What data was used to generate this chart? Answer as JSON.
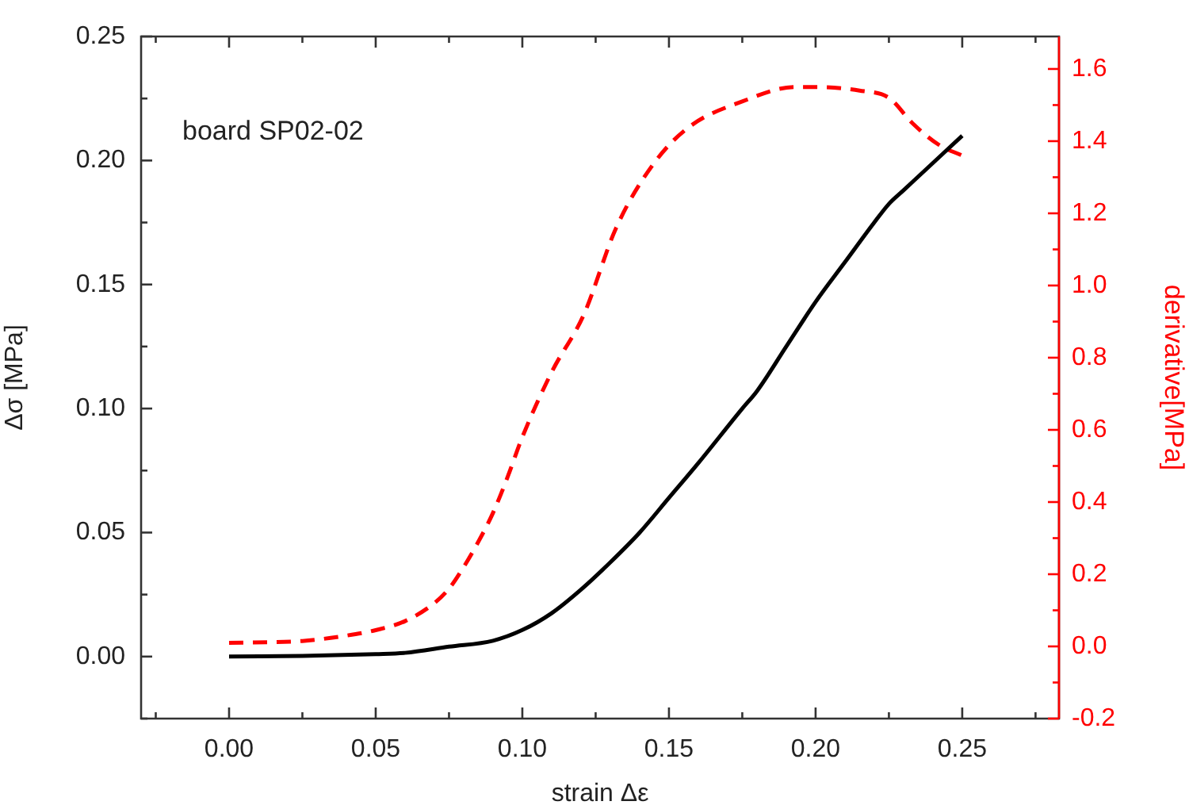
{
  "chart_data": {
    "type": "line",
    "xlabel": "strain Δε",
    "ylabel": "Δσ [MPa]",
    "y2label": "derivative[MPa]",
    "annotations": [
      "board SP02-02"
    ],
    "xlim": [
      -0.03,
      0.283
    ],
    "ylim": [
      -0.025,
      0.25
    ],
    "y2lim": [
      -0.2,
      1.69
    ],
    "xticks": [
      {
        "value": -0.025,
        "label": null
      },
      {
        "value": 0,
        "label": "0.00"
      },
      {
        "value": 0.025,
        "label": null
      },
      {
        "value": 0.05,
        "label": "0.05"
      },
      {
        "value": 0.075,
        "label": null
      },
      {
        "value": 0.1,
        "label": "0.10"
      },
      {
        "value": 0.125,
        "label": null
      },
      {
        "value": 0.15,
        "label": "0.15"
      },
      {
        "value": 0.175,
        "label": null
      },
      {
        "value": 0.2,
        "label": "0.20"
      },
      {
        "value": 0.225,
        "label": null
      },
      {
        "value": 0.25,
        "label": "0.25"
      },
      {
        "value": 0.275,
        "label": null
      }
    ],
    "yticks": [
      {
        "value": -0.025,
        "label": null
      },
      {
        "value": 0,
        "label": "0.00"
      },
      {
        "value": 0.025,
        "label": null
      },
      {
        "value": 0.05,
        "label": "0.05"
      },
      {
        "value": 0.075,
        "label": null
      },
      {
        "value": 0.1,
        "label": "0.10"
      },
      {
        "value": 0.125,
        "label": null
      },
      {
        "value": 0.15,
        "label": "0.15"
      },
      {
        "value": 0.175,
        "label": null
      },
      {
        "value": 0.2,
        "label": "0.20"
      },
      {
        "value": 0.225,
        "label": null
      },
      {
        "value": 0.25,
        "label": "0.25"
      }
    ],
    "y2ticks": [
      {
        "value": -0.2,
        "label": "-0.2"
      },
      {
        "value": -0.1,
        "label": null
      },
      {
        "value": 0,
        "label": "0.0"
      },
      {
        "value": 0.1,
        "label": null
      },
      {
        "value": 0.2,
        "label": "0.2"
      },
      {
        "value": 0.3,
        "label": null
      },
      {
        "value": 0.4,
        "label": "0.4"
      },
      {
        "value": 0.5,
        "label": null
      },
      {
        "value": 0.6,
        "label": "0.6"
      },
      {
        "value": 0.7,
        "label": null
      },
      {
        "value": 0.8,
        "label": "0.8"
      },
      {
        "value": 0.9,
        "label": null
      },
      {
        "value": 1,
        "label": "1.0"
      },
      {
        "value": 1.1,
        "label": null
      },
      {
        "value": 1.2,
        "label": "1.2"
      },
      {
        "value": 1.3,
        "label": null
      },
      {
        "value": 1.4,
        "label": "1.4"
      },
      {
        "value": 1.5,
        "label": null
      },
      {
        "value": 1.6,
        "label": "1.6"
      }
    ],
    "grid": false,
    "legend": false,
    "marker": "none",
    "series": [
      {
        "color": "#000000",
        "line_style": "solid",
        "x": [
          0,
          0.025,
          0.05,
          0.06,
          0.075,
          0.09,
          0.1,
          0.11,
          0.12,
          0.13,
          0.14,
          0.15,
          0.16,
          0.175,
          0.18,
          0.19,
          0.2,
          0.21,
          0.22,
          0.225,
          0.23,
          0.24,
          0.25
        ],
        "values": [
          0,
          0.0003,
          0.001,
          0.0015,
          0.004,
          0.0064,
          0.0107,
          0.0175,
          0.027,
          0.038,
          0.05,
          0.064,
          0.078,
          0.1,
          0.107,
          0.125,
          0.143,
          0.159,
          0.175,
          0.1825,
          0.188,
          0.199,
          0.21
        ]
      },
      {
        "color": "#ff0000",
        "line_style": "dashed",
        "axis": "y2",
        "x": [
          0,
          0.025,
          0.04,
          0.05,
          0.06,
          0.07,
          0.075,
          0.08,
          0.085,
          0.09,
          0.095,
          0.1,
          0.11,
          0.121,
          0.132,
          0.145,
          0.157,
          0.175,
          0.193,
          0.2,
          0.215,
          0.225,
          0.233,
          0.242,
          0.25
        ],
        "values": [
          0.01,
          0.015,
          0.03,
          0.045,
          0.07,
          0.12,
          0.16,
          0.22,
          0.29,
          0.37,
          0.47,
          0.58,
          0.76,
          0.92,
          1.16,
          1.34,
          1.44,
          1.51,
          1.55,
          1.55,
          1.54,
          1.52,
          1.45,
          1.39,
          1.36
        ]
      }
    ]
  }
}
